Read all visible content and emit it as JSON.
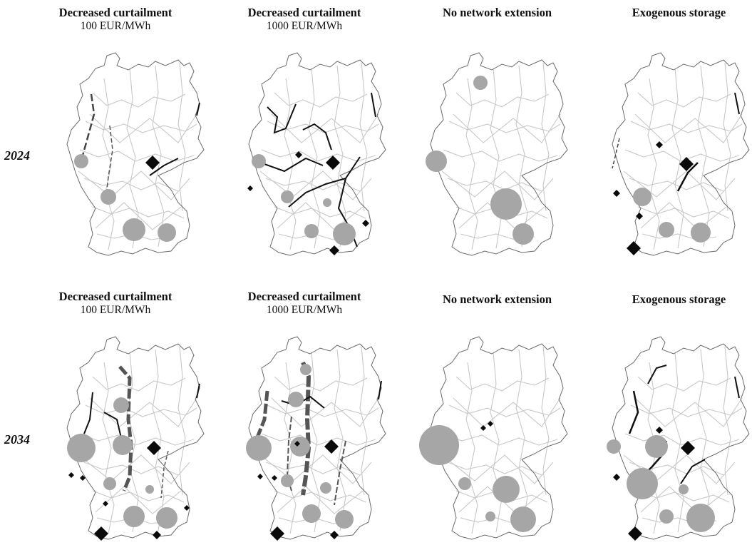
{
  "rows": [
    {
      "year": "2024"
    },
    {
      "year": "2034"
    }
  ],
  "panels": [
    {
      "title": "Decreased curtailment",
      "subtitle": "100 EUR/MWh"
    },
    {
      "title": "Decreased curtailment",
      "subtitle": "1000 EUR/MWh"
    },
    {
      "title": "No network extension",
      "subtitle": ""
    },
    {
      "title": "Exogenous storage",
      "subtitle": ""
    }
  ],
  "colors": {
    "grid_lines": "#c8c8c8",
    "border": "#6a6a6a",
    "circle_fill": "#a6a6a6",
    "line_dark": "#111111",
    "line_thick": "#555555",
    "diamond": "#0a0a0a"
  },
  "legend_semantics": {
    "circle": "grey circle marker",
    "diamond": "black diamond marker",
    "line": "line segment along network"
  }
}
